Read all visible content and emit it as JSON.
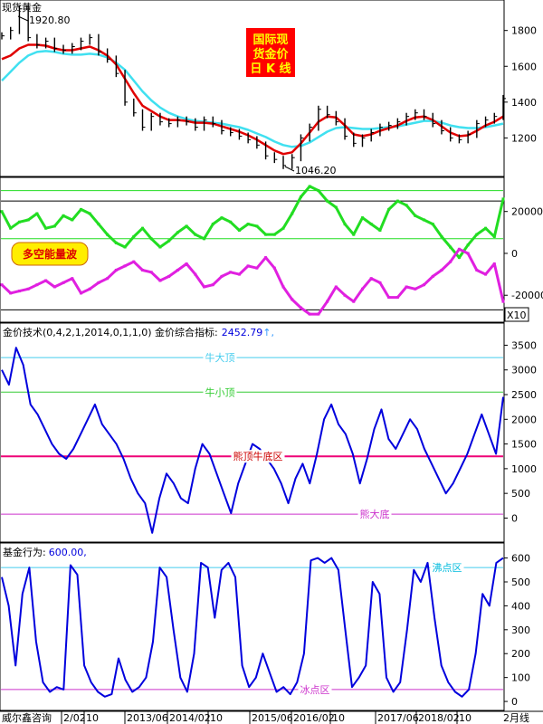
{
  "colors": {
    "background": "#ffffff",
    "candles": "#000000",
    "ma_red": "#e00000",
    "ma_cyan": "#40e0f0",
    "wave_green": "#22dd22",
    "wave_magenta": "#e020e0",
    "index_blue": "#0000dd",
    "fund_blue": "#0000dd",
    "ref_cyan": "#44ccee",
    "ref_green": "#33cc33",
    "ref_pink": "#ee0077",
    "ref_purple": "#cc33cc",
    "title_box": "#ff0000",
    "title_text": "#ffff00",
    "badge_fill": "#ffee00",
    "badge_text": "#dd0000"
  },
  "bottom_bar": {
    "source": "威尔鑫咨询",
    "dates": [
      "2/02",
      "10",
      "2013/06",
      "2014/02",
      "10",
      "2015/06",
      "2016/02",
      "10",
      "2017/06",
      "2018/02",
      "10"
    ],
    "period": "2月线"
  },
  "chart_data": [
    {
      "type": "line",
      "title": "现货黄金",
      "overlay_title": [
        "国际现",
        "货金价",
        "日 K 线"
      ],
      "series": [
        {
          "name": "",
          "style": "ohlc-bars",
          "values": [
            1770,
            1800,
            1920.8,
            1760,
            1720,
            1740,
            1700,
            1690,
            1710,
            1740,
            1760,
            1680,
            1640,
            1560,
            1400,
            1340,
            1260,
            1320,
            1290,
            1280,
            1300,
            1290,
            1260,
            1300,
            1280,
            1240,
            1230,
            1210,
            1190,
            1160,
            1100,
            1080,
            1046.2,
            1090,
            1200,
            1260,
            1360,
            1330,
            1290,
            1210,
            1170,
            1200,
            1230,
            1260,
            1270,
            1290,
            1320,
            1340,
            1320,
            1280,
            1240,
            1200,
            1190,
            1220,
            1280,
            1300,
            1320,
            1420
          ]
        },
        {
          "name": "",
          "values": [
            1640,
            1660,
            1700,
            1720,
            1720,
            1715,
            1700,
            1690,
            1690,
            1700,
            1710,
            1690,
            1660,
            1610,
            1530,
            1450,
            1380,
            1350,
            1320,
            1300,
            1300,
            1295,
            1285,
            1285,
            1280,
            1265,
            1250,
            1235,
            1215,
            1190,
            1160,
            1130,
            1110,
            1120,
            1170,
            1230,
            1290,
            1320,
            1315,
            1270,
            1220,
            1210,
            1220,
            1240,
            1255,
            1270,
            1295,
            1315,
            1320,
            1300,
            1265,
            1230,
            1210,
            1215,
            1240,
            1270,
            1290,
            1320
          ]
        },
        {
          "name": "",
          "values": [
            1520,
            1570,
            1620,
            1660,
            1680,
            1685,
            1680,
            1670,
            1665,
            1665,
            1670,
            1665,
            1650,
            1620,
            1580,
            1520,
            1460,
            1410,
            1370,
            1340,
            1320,
            1305,
            1295,
            1290,
            1285,
            1280,
            1270,
            1260,
            1245,
            1225,
            1205,
            1180,
            1160,
            1150,
            1155,
            1175,
            1205,
            1235,
            1255,
            1260,
            1255,
            1250,
            1250,
            1255,
            1260,
            1265,
            1275,
            1285,
            1295,
            1295,
            1285,
            1270,
            1260,
            1255,
            1255,
            1260,
            1270,
            1280
          ]
        }
      ],
      "annotations": [
        "1920.80",
        "1046.20"
      ],
      "yticks": [
        1200,
        1400,
        1600,
        1800
      ],
      "ylim": [
        1000,
        1950
      ]
    },
    {
      "type": "line",
      "badge": "多空能量波",
      "scale_label": "X10",
      "series": [
        {
          "name": "",
          "values": [
            20000,
            12000,
            15000,
            16000,
            19000,
            12000,
            13000,
            18000,
            16000,
            21000,
            19000,
            14000,
            9000,
            5000,
            3000,
            8000,
            12000,
            7000,
            3000,
            6000,
            10000,
            13000,
            9000,
            7000,
            14000,
            17000,
            15000,
            11000,
            14000,
            13000,
            9000,
            9000,
            12000,
            19000,
            27000,
            32000,
            30000,
            25000,
            22000,
            14000,
            9000,
            17000,
            14000,
            11000,
            21000,
            25000,
            23000,
            18000,
            16000,
            14000,
            8000,
            3000,
            -2000,
            4000,
            9000,
            12000,
            8000,
            26000
          ]
        },
        {
          "name": "",
          "values": [
            -15000,
            -19000,
            -18000,
            -17000,
            -15000,
            -13000,
            -16000,
            -14000,
            -12000,
            -19000,
            -17000,
            -14000,
            -12000,
            -8000,
            -6000,
            -4000,
            -8000,
            -9000,
            -13000,
            -11000,
            -8000,
            -5000,
            -10000,
            -16000,
            -15000,
            -11000,
            -9000,
            -10000,
            -6000,
            -7000,
            -2000,
            -7000,
            -16000,
            -22000,
            -26000,
            -29000,
            -29000,
            -23000,
            -16000,
            -20000,
            -23000,
            -17000,
            -12000,
            -14000,
            -21000,
            -21000,
            -16000,
            -17000,
            -15000,
            -11000,
            -8000,
            -4000,
            2000,
            0,
            -8000,
            -10000,
            -5000,
            -23000
          ]
        }
      ],
      "reference_lines": [
        30000,
        25000,
        7000,
        -27000
      ],
      "yticks": [
        -20000,
        0,
        20000
      ],
      "ylim": [
        -32000,
        35000
      ]
    },
    {
      "type": "line",
      "title": "金价技术(0,4,2,1,2014,0,1,1,0) 金价综合指标:",
      "value_label": "2452.79",
      "arrow": "↑,",
      "series": [
        {
          "name": "",
          "values": [
            3000,
            2700,
            3450,
            3100,
            2300,
            2100,
            1800,
            1500,
            1300,
            1200,
            1400,
            1700,
            2000,
            2300,
            1900,
            1700,
            1500,
            1200,
            800,
            500,
            300,
            -300,
            400,
            900,
            700,
            400,
            300,
            1000,
            1500,
            1300,
            900,
            500,
            100,
            700,
            1100,
            1500,
            1400,
            1200,
            1000,
            700,
            300,
            800,
            1100,
            700,
            1300,
            2000,
            2300,
            1900,
            1700,
            1300,
            700,
            1200,
            1800,
            2200,
            1600,
            1400,
            1700,
            2000,
            1800,
            1400,
            1100,
            800,
            500,
            700,
            1000,
            1300,
            1700,
            2100,
            1700,
            1300,
            2452.79
          ]
        }
      ],
      "reference_lines": [
        {
          "label": "牛大顶",
          "value": 3250
        },
        {
          "label": "牛小顶",
          "value": 2550
        },
        {
          "label": "熊顶牛底区",
          "value": 1250
        },
        {
          "label": "熊大底",
          "value": 80
        }
      ],
      "yticks": [
        0,
        500,
        1000,
        1500,
        2000,
        2500,
        3000,
        3500
      ],
      "ylim": [
        -450,
        3600
      ]
    },
    {
      "type": "line",
      "title": "基金行为:",
      "value_label": "600.00,",
      "series": [
        {
          "name": "",
          "values": [
            520,
            400,
            150,
            450,
            560,
            250,
            80,
            40,
            60,
            50,
            570,
            530,
            150,
            80,
            40,
            20,
            30,
            180,
            90,
            40,
            60,
            100,
            250,
            560,
            520,
            300,
            100,
            40,
            200,
            580,
            560,
            350,
            550,
            580,
            520,
            150,
            60,
            100,
            200,
            120,
            40,
            60,
            30,
            80,
            200,
            590,
            600,
            580,
            600,
            550,
            300,
            60,
            100,
            150,
            500,
            450,
            100,
            40,
            80,
            300,
            550,
            500,
            580,
            350,
            150,
            80,
            40,
            20,
            50,
            200,
            450,
            400,
            580,
            600
          ]
        }
      ],
      "reference_lines": [
        {
          "label": "沸点区",
          "value": 560
        },
        {
          "label": "冰点区",
          "value": 50
        }
      ],
      "yticks": [
        0,
        100,
        200,
        300,
        400,
        500,
        600
      ],
      "ylim": [
        -30,
        640
      ]
    }
  ]
}
